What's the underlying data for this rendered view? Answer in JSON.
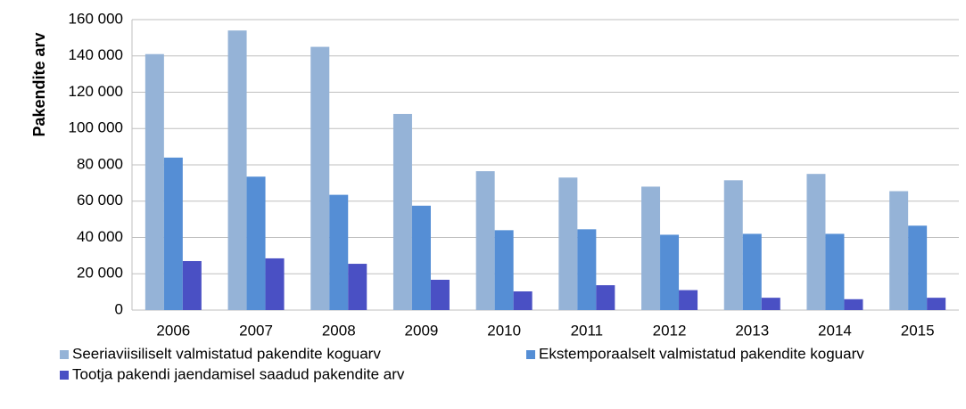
{
  "chart_data": {
    "type": "bar",
    "y_label": "Pakendite arv",
    "categories": [
      "2006",
      "2007",
      "2008",
      "2009",
      "2010",
      "2011",
      "2012",
      "2013",
      "2014",
      "2015"
    ],
    "series": [
      {
        "name": "Seeriaviisiliselt valmistatud pakendite koguarv",
        "color": "#95b3d7",
        "values": [
          141000,
          154000,
          145000,
          108000,
          76500,
          73000,
          68000,
          71500,
          75000,
          65500
        ]
      },
      {
        "name": "Ekstemporaalselt valmistatud pakendite koguarv",
        "color": "#558ed5",
        "values": [
          84000,
          73500,
          63500,
          57500,
          44000,
          44500,
          41500,
          42000,
          42000,
          46500
        ]
      },
      {
        "name": "Tootja pakendi jaendamisel saadud pakendite arv",
        "color": "#4a50c4",
        "values": [
          27000,
          28500,
          25500,
          16700,
          10300,
          13700,
          11000,
          6800,
          6000,
          6800
        ]
      }
    ],
    "ylim": [
      0,
      160000
    ],
    "yticks": [
      0,
      {
        "value": 20000,
        "label": "20 000"
      },
      {
        "value": 40000,
        "label": "40 000"
      },
      {
        "value": 60000,
        "label": "60 000"
      },
      {
        "value": 80000,
        "label": "80 000"
      },
      {
        "value": 100000,
        "label": "100 000"
      },
      {
        "value": 120000,
        "label": "120 000"
      },
      {
        "value": 140000,
        "label": "140 000"
      },
      {
        "value": 160000,
        "label": "160 000"
      }
    ],
    "grid": true
  }
}
